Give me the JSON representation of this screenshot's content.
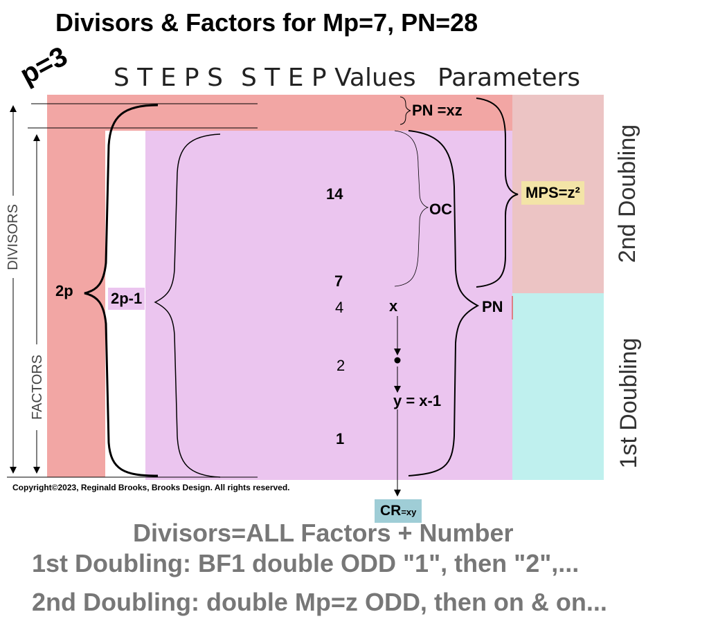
{
  "title": "Divisors & Factors for Mp=7, PN=28",
  "p_label": "p=3",
  "headers": {
    "steps": "S T E P S",
    "step_values": "S T E P Values",
    "parameters": "Parameters"
  },
  "side_labels": {
    "divisors": "DIVISORS",
    "factors": "FACTORS",
    "second_doubling": "2nd Doubling",
    "first_doubling": "1st Doubling"
  },
  "bracket_labels": {
    "two_p": "2p",
    "two_p_minus_1": "2p-1",
    "pn_xz": "PN =xz",
    "oc": "OC",
    "mps": "MPS=z²",
    "pn": "PN"
  },
  "step_values": {
    "v14": "14",
    "v7": "7",
    "v4": "4",
    "v2": "2",
    "v1": "1"
  },
  "flow": {
    "x": "x",
    "y": "y = x-1",
    "cr": "CR",
    "cr_sub": "=xy"
  },
  "copyright": "Copyright©2023, Reginald Brooks, Brooks Design. All rights reserved.",
  "bottom_lines": {
    "line1": "Divisors=ALL Factors + Number",
    "line2": "1st Doubling: BF1 double ODD \"1\", then \"2\",...",
    "line3": "2nd Doubling: double Mp=z ODD, then on & on..."
  },
  "colors": {
    "salmon": "#f2a6a4",
    "pink_light": "#ecc4c4",
    "lavender": "#ebc5ef",
    "cyan": "#bff0ee",
    "mps_box": "#f3e4a7",
    "cr_box": "#9fcdd6",
    "bottom_text": "#777777"
  }
}
